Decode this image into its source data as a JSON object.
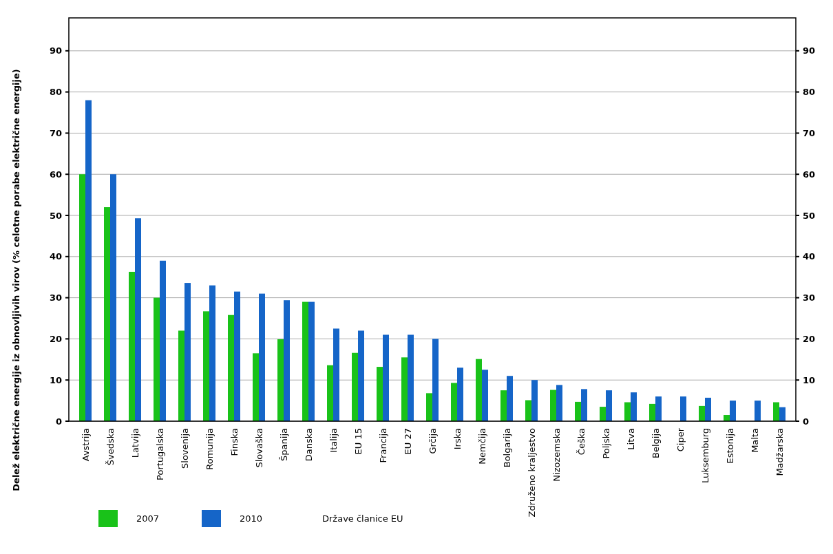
{
  "chart_data": {
    "type": "bar",
    "ylabel": "Delež električne energije iz obnovljivih virov (% celotne porabe električne energije)",
    "xlabel": "Države članice EU",
    "categories": [
      "Avstrija",
      "Švedska",
      "Latvija",
      "Portugalska",
      "Slovenija",
      "Romunija",
      "Finska",
      "Slovaška",
      "Španija",
      "Danska",
      "Italija",
      "EU 15",
      "Francija",
      "EU 27",
      "Grčija",
      "Irska",
      "Nemčija",
      "Bolgarija",
      "Združeno kraljestvo",
      "Nizozemska",
      "Češka",
      "Poljska",
      "Litva",
      "Belgija",
      "Ciper",
      "Luksemburg",
      "Estonija",
      "Malta",
      "Madžarska"
    ],
    "series": [
      {
        "name": "2007",
        "color": "#19c219",
        "values": [
          60,
          52,
          36.3,
          30,
          22,
          26.7,
          25.8,
          16.5,
          19.9,
          29,
          13.6,
          16.6,
          13.2,
          15.5,
          6.8,
          9.3,
          15.1,
          7.5,
          5.1,
          7.6,
          4.7,
          3.5,
          4.6,
          4.2,
          0,
          3.7,
          1.5,
          0,
          4.6
        ]
      },
      {
        "name": "2010",
        "color": "#1565c8",
        "values": [
          78,
          60,
          49.3,
          39,
          33.6,
          33,
          31.5,
          31,
          29.4,
          29,
          22.5,
          22,
          21,
          21,
          20,
          13,
          12.5,
          11,
          10,
          8.8,
          7.8,
          7.5,
          7,
          6,
          6,
          5.7,
          5,
          5,
          3.4
        ]
      }
    ],
    "ylim": [
      0,
      98
    ],
    "yticks": [
      0,
      10,
      20,
      30,
      40,
      50,
      60,
      70,
      80,
      90
    ],
    "y2lim": [
      0,
      98
    ],
    "y2ticks": [
      0,
      10,
      20,
      30,
      40,
      50,
      60,
      70,
      80,
      90
    ],
    "grid": "y",
    "legend": "bottom left"
  }
}
